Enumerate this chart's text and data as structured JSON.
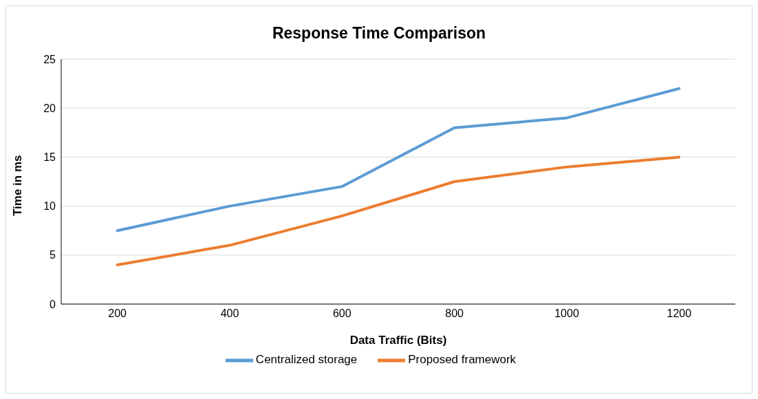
{
  "chart_data": {
    "type": "line",
    "title": "Response Time Comparison",
    "xlabel": "Data Traffic (Bits)",
    "ylabel": "Time in ms",
    "categories": [
      "200",
      "400",
      "600",
      "800",
      "1000",
      "1200"
    ],
    "series": [
      {
        "name": "Centralized storage",
        "color": "#5b9bd5",
        "values": [
          7.5,
          10,
          12,
          18,
          19,
          22
        ]
      },
      {
        "name": "Proposed framework",
        "color": "#ed7d31",
        "values": [
          4,
          6,
          9,
          12.5,
          14,
          15
        ]
      }
    ],
    "ylim": [
      0,
      25
    ],
    "yticks": [
      0,
      5,
      10,
      15,
      20,
      25
    ],
    "grid": "y",
    "legend": "bottom",
    "marker": "none",
    "line_style": "solid"
  }
}
